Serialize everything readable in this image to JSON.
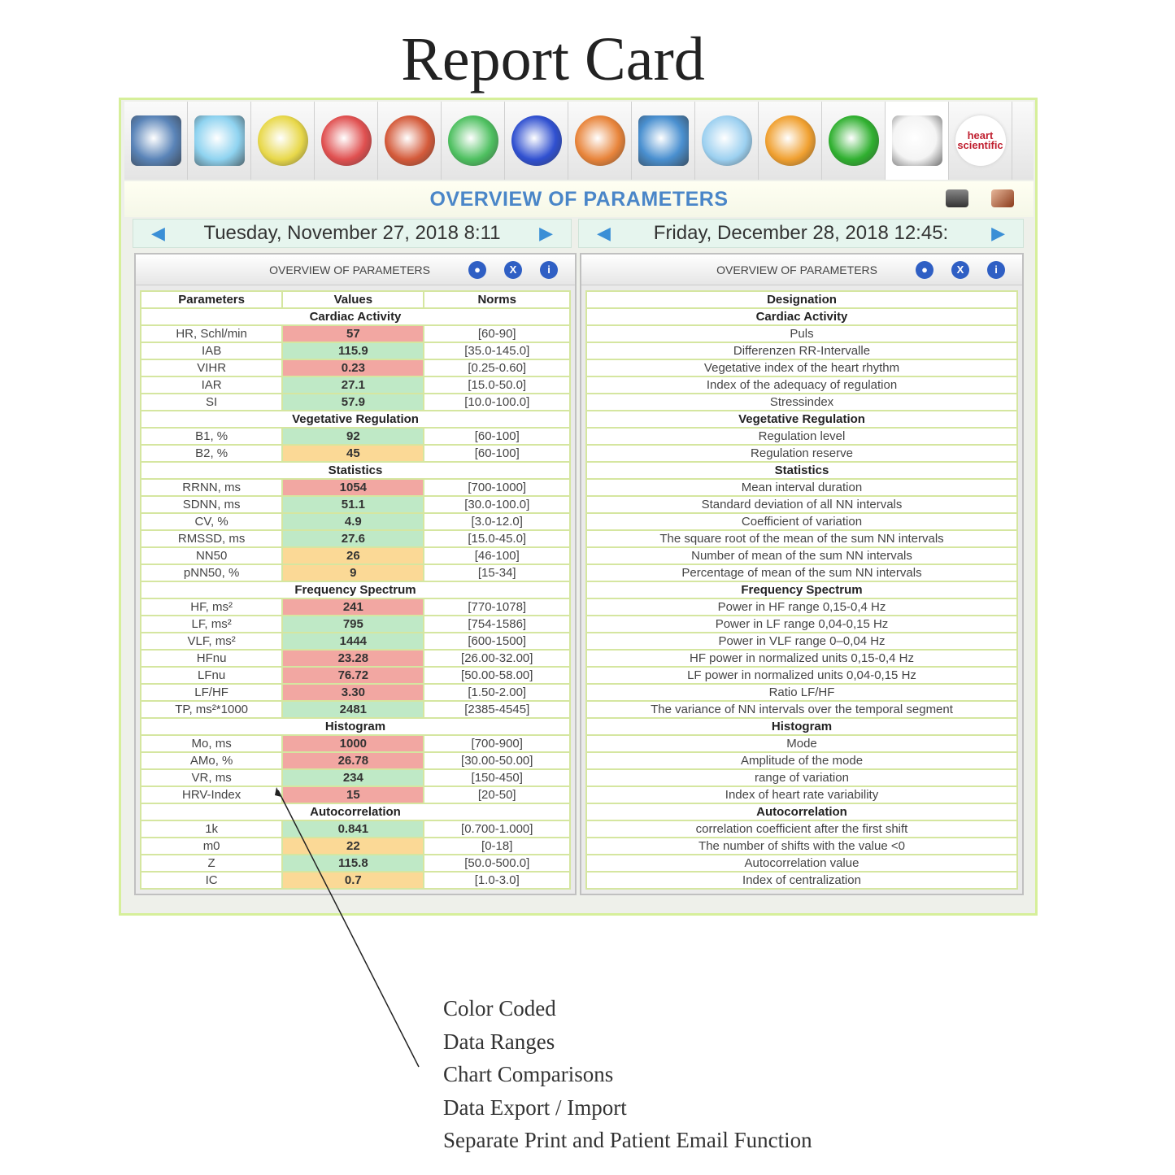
{
  "title": "Report Card",
  "toolbar": {
    "icons": [
      "ecg-monitor-icon",
      "scatter-grid-icon",
      "heat-sphere-icon",
      "hexagon-cluster-icon",
      "body-map-icon",
      "chakra-stack-icon",
      "symmetry-pattern-icon",
      "pie-chart-icon",
      "wave-chart-icon",
      "head-profile-icon",
      "om-symbol-icon",
      "yin-yang-icon",
      "bar-chart-icon",
      "heart-scientific-logo"
    ],
    "active": 12,
    "logo_text": "heart scientific"
  },
  "header": {
    "title": "OVERVIEW OF PARAMETERS",
    "print_icon": "printer-icon",
    "book_icon": "book-icon"
  },
  "left": {
    "date": "Tuesday, November 27, 2018 8:11",
    "subtitle": "OVERVIEW OF PARAMETERS",
    "columns": [
      "Parameters",
      "Values",
      "Norms"
    ]
  },
  "right": {
    "date": "Friday, December 28, 2018 12:45:",
    "subtitle": "OVERVIEW OF PARAMETERS",
    "column": "Designation"
  },
  "status_colors": {
    "red": "#f2a7a2",
    "green": "#bfe9c6",
    "yellow": "#fbd996"
  },
  "sections": [
    {
      "name": "Cardiac Activity",
      "rows": [
        [
          "HR, Schl/min",
          "57",
          "[60-90]",
          "red",
          "Puls"
        ],
        [
          "IAB",
          "115.9",
          "[35.0-145.0]",
          "green",
          "Differenzen RR-Intervalle"
        ],
        [
          "VIHR",
          "0.23",
          "[0.25-0.60]",
          "red",
          "Vegetative index of the heart rhythm"
        ],
        [
          "IAR",
          "27.1",
          "[15.0-50.0]",
          "green",
          "Index of the adequacy of regulation"
        ],
        [
          "SI",
          "57.9",
          "[10.0-100.0]",
          "green",
          "Stressindex"
        ]
      ]
    },
    {
      "name": "Vegetative Regulation",
      "rows": [
        [
          "B1, %",
          "92",
          "[60-100]",
          "green",
          "Regulation level"
        ],
        [
          "B2, %",
          "45",
          "[60-100]",
          "yellow",
          "Regulation reserve"
        ]
      ]
    },
    {
      "name": "Statistics",
      "rows": [
        [
          "RRNN, ms",
          "1054",
          "[700-1000]",
          "red",
          "Mean interval duration"
        ],
        [
          "SDNN, ms",
          "51.1",
          "[30.0-100.0]",
          "green",
          "Standard deviation of all NN intervals"
        ],
        [
          "CV, %",
          "4.9",
          "[3.0-12.0]",
          "green",
          "Coefficient of variation"
        ],
        [
          "RMSSD, ms",
          "27.6",
          "[15.0-45.0]",
          "green",
          "The square root of the mean of the sum NN intervals"
        ],
        [
          "NN50",
          "26",
          "[46-100]",
          "yellow",
          "Number of mean of the sum NN intervals"
        ],
        [
          "pNN50, %",
          "9",
          "[15-34]",
          "yellow",
          "Percentage of mean of the sum NN intervals"
        ]
      ]
    },
    {
      "name": "Frequency Spectrum",
      "rows": [
        [
          "HF, ms²",
          "241",
          "[770-1078]",
          "red",
          "Power in HF range 0,15-0,4 Hz"
        ],
        [
          "LF, ms²",
          "795",
          "[754-1586]",
          "green",
          "Power in LF range 0,04-0,15 Hz"
        ],
        [
          "VLF, ms²",
          "1444",
          "[600-1500]",
          "green",
          "Power in VLF range 0–0,04 Hz"
        ],
        [
          "HFnu",
          "23.28",
          "[26.00-32.00]",
          "red",
          "HF power in normalized units 0,15-0,4 Hz"
        ],
        [
          "LFnu",
          "76.72",
          "[50.00-58.00]",
          "red",
          "LF power in normalized units 0,04-0,15 Hz"
        ],
        [
          "LF/HF",
          "3.30",
          "[1.50-2.00]",
          "red",
          "Ratio LF/HF"
        ],
        [
          "TP, ms²*1000",
          "2481",
          "[2385-4545]",
          "green",
          "The variance of NN intervals over the temporal segment"
        ]
      ]
    },
    {
      "name": "Histogram",
      "rows": [
        [
          "Mo, ms",
          "1000",
          "[700-900]",
          "red",
          "Mode"
        ],
        [
          "AMo, %",
          "26.78",
          "[30.00-50.00]",
          "red",
          "Amplitude of the mode"
        ],
        [
          "VR, ms",
          "234",
          "[150-450]",
          "green",
          "range of variation"
        ],
        [
          "HRV-Index",
          "15",
          "[20-50]",
          "red",
          "Index of heart rate variability"
        ]
      ]
    },
    {
      "name": "Autocorrelation",
      "rows": [
        [
          "1k",
          "0.841",
          "[0.700-1.000]",
          "green",
          "correlation coefficient after the first shift"
        ],
        [
          "m0",
          "22",
          "[0-18]",
          "yellow",
          "The number of shifts with the value <0"
        ],
        [
          "Z",
          "115.8",
          "[50.0-500.0]",
          "green",
          "Autocorrelation value"
        ],
        [
          "IC",
          "0.7",
          "[1.0-3.0]",
          "yellow",
          "Index of centralization"
        ]
      ]
    }
  ],
  "features": [
    "Color Coded",
    "Data Ranges",
    "Chart Comparisons",
    "Data Export / Import",
    "Separate Print and Patient Email Function"
  ]
}
